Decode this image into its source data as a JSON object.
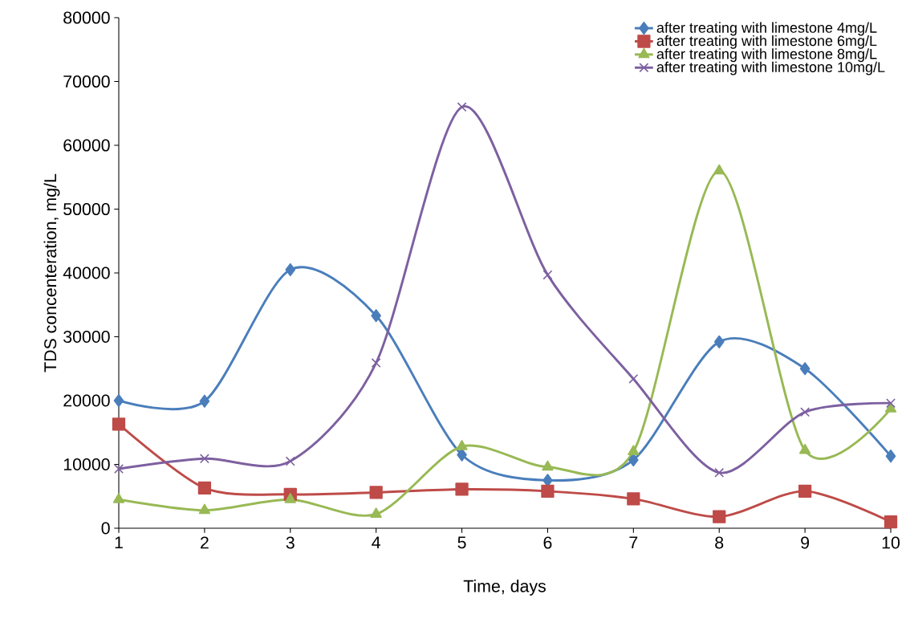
{
  "chart_data": {
    "type": "line",
    "xlabel": "Time, days",
    "ylabel": "TDS concenteration, mg/L",
    "x": [
      1,
      2,
      3,
      4,
      5,
      6,
      7,
      8,
      9,
      10
    ],
    "xlim": [
      1,
      10
    ],
    "xticks": [
      1,
      2,
      3,
      4,
      5,
      6,
      7,
      8,
      9,
      10
    ],
    "ylim": [
      0,
      80000
    ],
    "yticks": [
      0,
      10000,
      20000,
      30000,
      40000,
      50000,
      60000,
      70000,
      80000
    ],
    "grid": false,
    "legend": "top right",
    "line_style": "solid",
    "series": [
      {
        "name": "after treating with limestone 4mg/L",
        "color": "#4a7ebb",
        "marker": "diamond",
        "values": [
          20000,
          19900,
          40500,
          33300,
          11500,
          7500,
          10700,
          29200,
          25000,
          11300
        ]
      },
      {
        "name": "after treating with limestone 6mg/L",
        "color": "#be4b48",
        "marker": "square",
        "values": [
          16300,
          6300,
          5300,
          5600,
          6100,
          5800,
          4600,
          1800,
          5800,
          1000
        ]
      },
      {
        "name": "after treating with limestone 8mg/L",
        "color": "#98b954",
        "marker": "triangle",
        "values": [
          4500,
          2800,
          4500,
          2200,
          12800,
          9600,
          12000,
          56000,
          12200,
          18700
        ]
      },
      {
        "name": "after treating with limestone 10mg/L",
        "color": "#7d60a0",
        "marker": "cross",
        "values": [
          9300,
          10900,
          10500,
          25900,
          66000,
          39700,
          23400,
          8700,
          18200,
          19600
        ]
      }
    ]
  }
}
